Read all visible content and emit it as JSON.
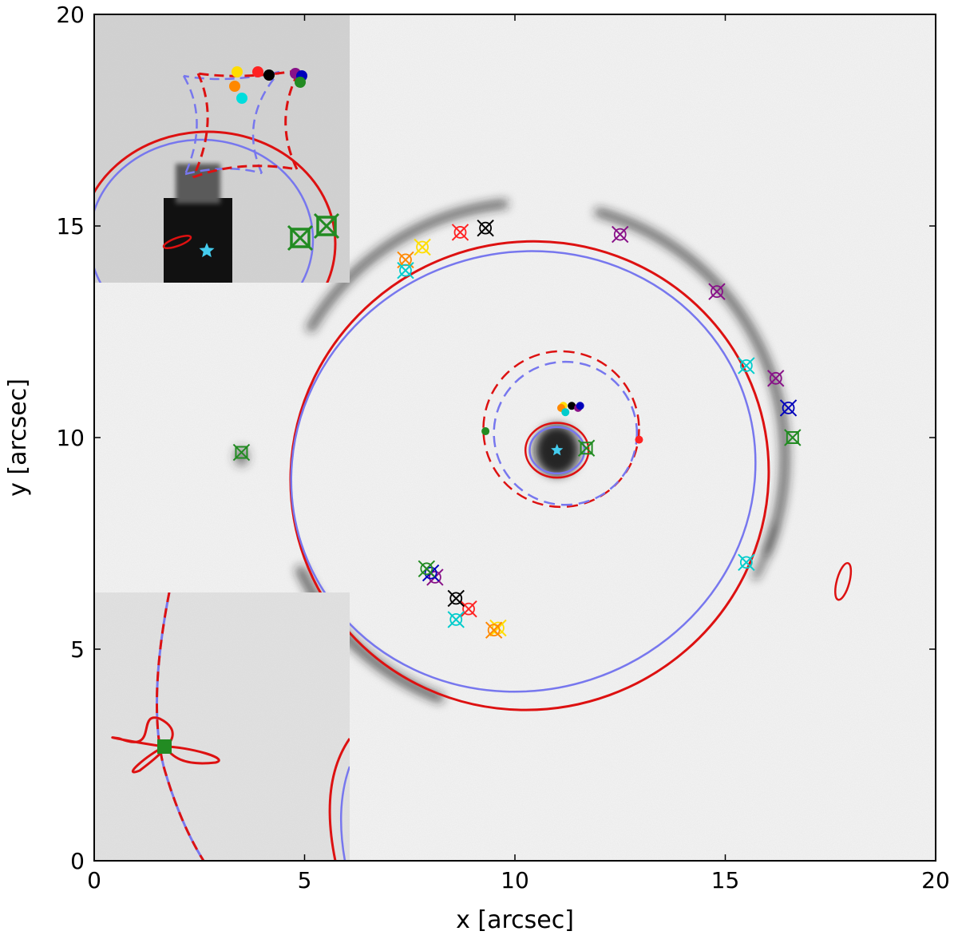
{
  "chart_data": {
    "type": "scatter",
    "title": "",
    "xlabel": "x [arcsec]",
    "ylabel": "y [arcsec]",
    "xlim": [
      0,
      20
    ],
    "ylim": [
      0,
      20
    ],
    "x_ticks": [
      0,
      5,
      10,
      15,
      20
    ],
    "y_ticks": [
      0,
      5,
      10,
      15,
      20
    ],
    "x_tick_labels": [
      "0",
      "5",
      "10",
      "15",
      "20"
    ],
    "y_tick_labels": [
      "0",
      "5",
      "10",
      "15",
      "20"
    ],
    "grid": false,
    "legend": "none",
    "background": "inverted-grayscale lensed-galaxy image",
    "colors": {
      "model_a": "#dd1111",
      "model_b": "#7777ee",
      "lens_star": "#44ccee",
      "green": "#228b22"
    },
    "lens_center": {
      "x": 11.0,
      "y": 9.7
    },
    "tangential_critical_curves": [
      {
        "model": "red",
        "center": [
          10.35,
          9.1
        ],
        "rx": 5.7,
        "ry": 5.55,
        "tilt_deg": -20
      },
      {
        "model": "blue",
        "center": [
          10.2,
          9.2
        ],
        "rx": 5.55,
        "ry": 5.2,
        "tilt_deg": -18
      }
    ],
    "radial_caustic_curves": [
      {
        "model": "red",
        "center": [
          11.1,
          10.2
        ],
        "radius": 1.85,
        "style": "dashed"
      },
      {
        "model": "blue",
        "center": [
          11.2,
          10.1
        ],
        "radius": 1.7,
        "style": "dashed"
      }
    ],
    "inner_critical_curves": [
      {
        "model": "red",
        "center": [
          11.0,
          9.7
        ],
        "rx": 0.75,
        "ry": 0.65
      },
      {
        "model": "blue",
        "center": [
          11.0,
          9.7
        ],
        "rx": 0.65,
        "ry": 0.55
      }
    ],
    "image_families": [
      {
        "color": "#ffdd00",
        "observed": [
          [
            7.8,
            14.5
          ],
          [
            9.6,
            5.5
          ]
        ],
        "source": [
          11.15,
          10.75
        ]
      },
      {
        "color": "#ff8800",
        "observed": [
          [
            7.4,
            14.2
          ],
          [
            9.5,
            5.45
          ]
        ],
        "source": [
          11.1,
          10.7
        ]
      },
      {
        "color": "#ff2222",
        "observed": [
          [
            8.7,
            14.85
          ],
          [
            8.9,
            5.95
          ]
        ],
        "source": [
          12.95,
          9.95
        ]
      },
      {
        "color": "#000000",
        "observed": [
          [
            9.3,
            14.95
          ],
          [
            8.6,
            6.2
          ]
        ],
        "source": [
          11.35,
          10.75
        ]
      },
      {
        "color": "#00cccc",
        "observed": [
          [
            7.4,
            13.95
          ],
          [
            8.6,
            5.7
          ],
          [
            15.5,
            11.7
          ],
          [
            15.5,
            7.05
          ]
        ],
        "source": [
          11.2,
          10.6
        ]
      },
      {
        "color": "#881188",
        "observed": [
          [
            12.5,
            14.8
          ],
          [
            14.8,
            13.45
          ],
          [
            16.2,
            11.4
          ],
          [
            8.1,
            6.7
          ]
        ],
        "source": [
          11.5,
          10.7
        ]
      },
      {
        "color": "#0000bb",
        "observed": [
          [
            16.5,
            10.7
          ],
          [
            8.0,
            6.8
          ]
        ],
        "source": [
          11.55,
          10.75
        ]
      },
      {
        "color": "#228b22",
        "observed": [
          [
            16.6,
            10.0
          ],
          [
            7.9,
            6.9
          ],
          [
            11.7,
            9.75
          ],
          [
            3.5,
            9.65
          ]
        ],
        "source": [
          9.3,
          10.15
        ]
      }
    ],
    "extra_caustic": {
      "center": [
        17.8,
        6.6
      ],
      "rx": 0.15,
      "ry": 0.45
    }
  },
  "insets": {
    "top_left": "zoom on source-plane caustics and lens center",
    "bottom_left": "zoom on radial caustic near green source"
  }
}
